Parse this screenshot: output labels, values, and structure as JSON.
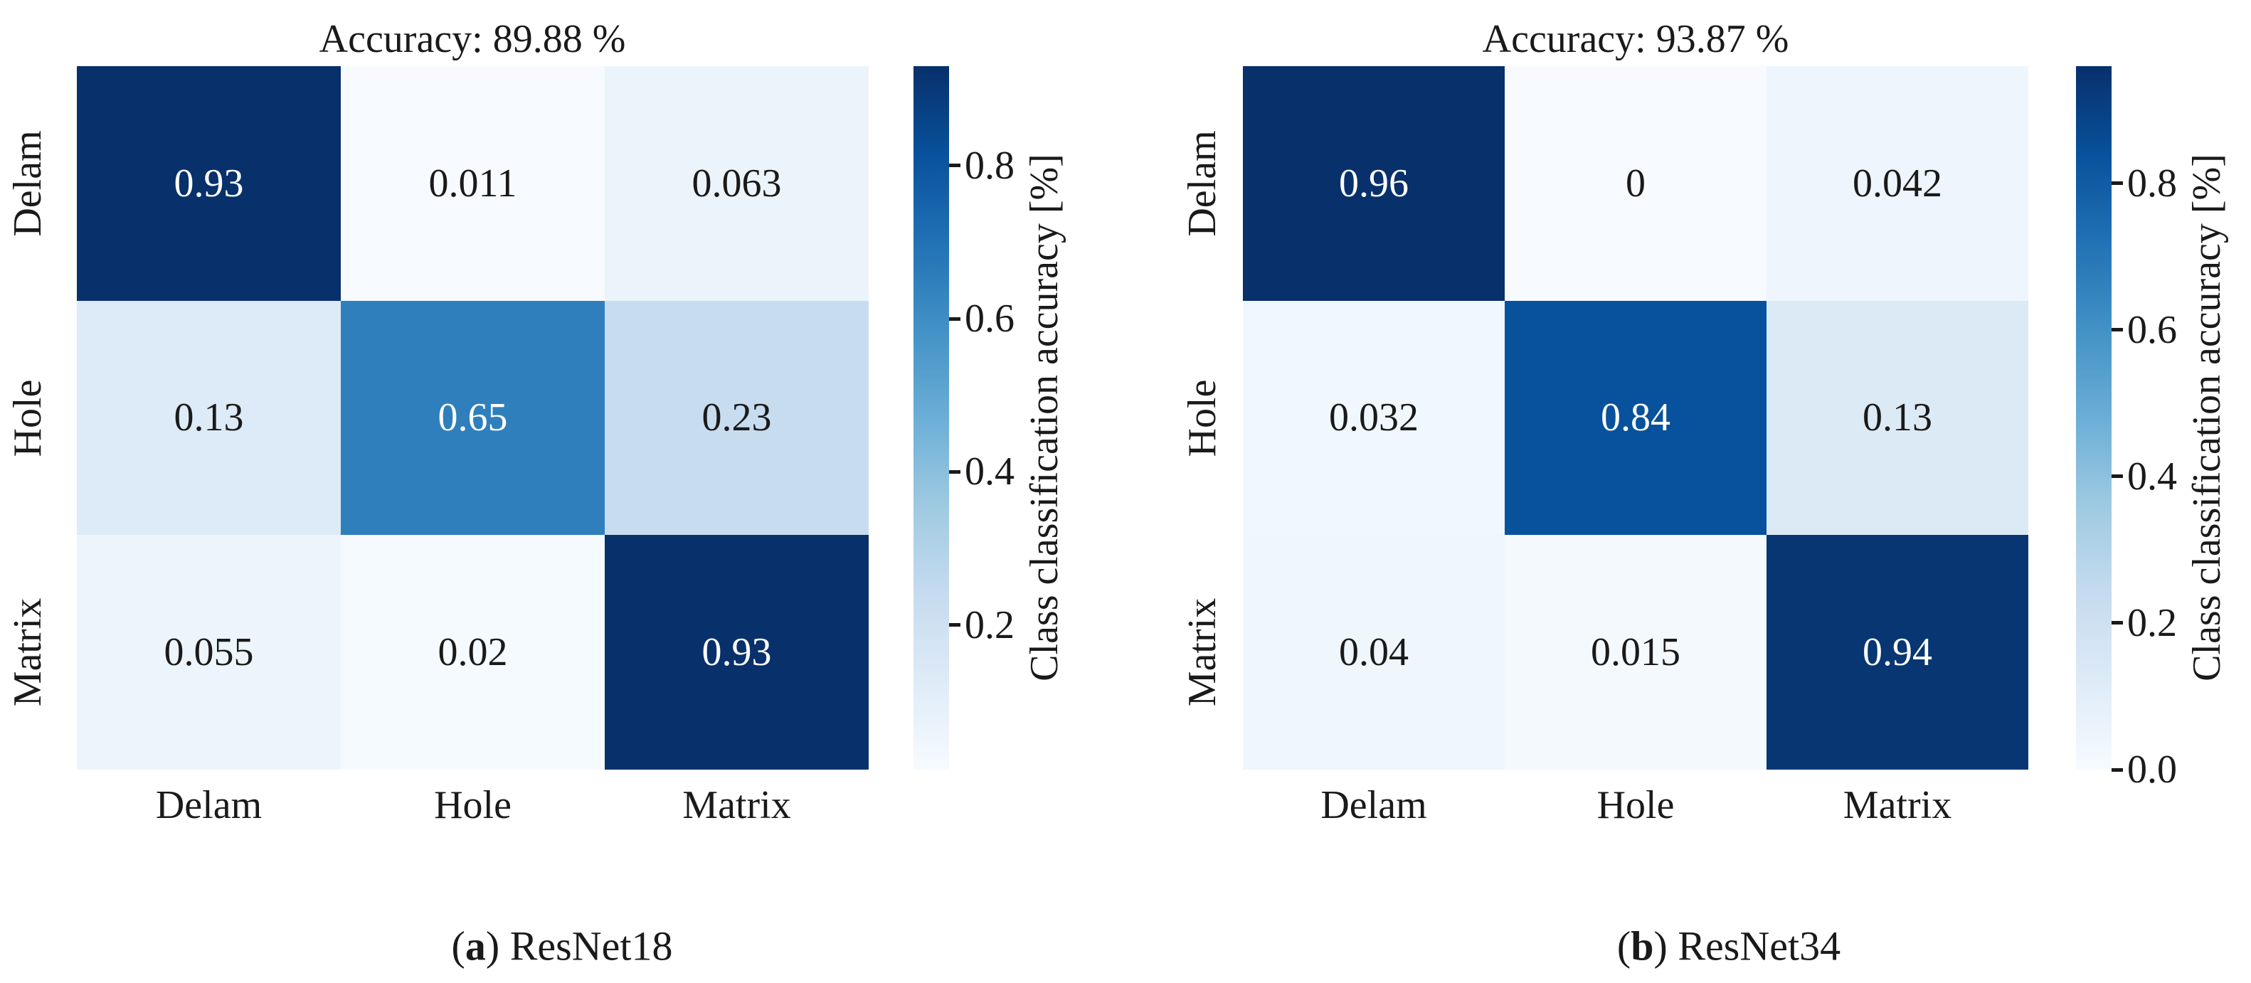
{
  "colors": {
    "background": "#ffffff",
    "text_dark": "#1a1a1a",
    "text_light": "#ffffff",
    "colormap_name": "Blues",
    "cmap_stops": [
      "#f7fbff",
      "#deebf7",
      "#c6dbef",
      "#9ecae1",
      "#6baed6",
      "#4292c6",
      "#2171b5",
      "#08519c",
      "#08306b"
    ]
  },
  "chart_data": [
    {
      "type": "heatmap",
      "panel": "a",
      "title": "Accuracy: 89.88 %",
      "accuracy_percent": 89.88,
      "model": "ResNet18",
      "caption": {
        "open": "(",
        "letter": "a",
        "rest": ") ResNet18"
      },
      "x_categories": [
        "Delam",
        "Hole",
        "Matrix"
      ],
      "y_categories": [
        "Delam",
        "Hole",
        "Matrix"
      ],
      "values": [
        [
          0.93,
          0.011,
          0.063
        ],
        [
          0.13,
          0.65,
          0.23
        ],
        [
          0.055,
          0.02,
          0.93
        ]
      ],
      "value_labels": [
        [
          "0.93",
          "0.011",
          "0.063"
        ],
        [
          "0.13",
          "0.65",
          "0.23"
        ],
        [
          "0.055",
          "0.02",
          "0.93"
        ]
      ],
      "vmin": 0.011,
      "vmax": 0.93,
      "colorbar_label": "Class classification accuracy [%]",
      "colorbar_ticks": [
        0.8,
        0.6,
        0.4,
        0.2
      ],
      "colorbar_tick_labels": [
        "0.8",
        "0.6",
        "0.4",
        "0.2"
      ],
      "grid": false,
      "legend": "colorbar-right"
    },
    {
      "type": "heatmap",
      "panel": "b",
      "title": "Accuracy: 93.87 %",
      "accuracy_percent": 93.87,
      "model": "ResNet34",
      "caption": {
        "open": "(",
        "letter": "b",
        "rest": ") ResNet34"
      },
      "x_categories": [
        "Delam",
        "Hole",
        "Matrix"
      ],
      "y_categories": [
        "Delam",
        "Hole",
        "Matrix"
      ],
      "values": [
        [
          0.96,
          0,
          0.042
        ],
        [
          0.032,
          0.84,
          0.13
        ],
        [
          0.04,
          0.015,
          0.94
        ]
      ],
      "value_labels": [
        [
          "0.96",
          "0",
          "0.042"
        ],
        [
          "0.032",
          "0.84",
          "0.13"
        ],
        [
          "0.04",
          "0.015",
          "0.94"
        ]
      ],
      "vmin": 0,
      "vmax": 0.96,
      "colorbar_label": "Class classification accuracy [%]",
      "colorbar_ticks": [
        0.8,
        0.6,
        0.4,
        0.2,
        0.0
      ],
      "colorbar_tick_labels": [
        "0.8",
        "0.6",
        "0.4",
        "0.2",
        "0.0"
      ],
      "grid": false,
      "legend": "colorbar-right"
    }
  ]
}
